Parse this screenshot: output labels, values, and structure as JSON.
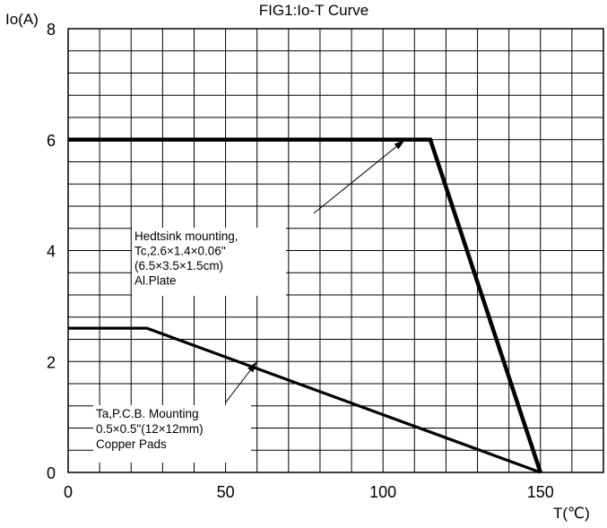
{
  "chart_data": {
    "type": "line",
    "title": "FIG1:Io-T Curve",
    "xlabel": "T(℃)",
    "ylabel": "Io(A)",
    "xlim": [
      0,
      170
    ],
    "ylim": [
      0,
      8
    ],
    "xticks": [
      0,
      50,
      100,
      150
    ],
    "yticks": [
      0,
      2,
      4,
      6,
      8
    ],
    "grid": true,
    "series": [
      {
        "name": "Hedtsink mounting",
        "x": [
          0,
          115,
          150
        ],
        "y": [
          6,
          6,
          0
        ]
      },
      {
        "name": "Ta,P.C.B. Mounting",
        "x": [
          0,
          25,
          150
        ],
        "y": [
          2.6,
          2.6,
          0
        ]
      }
    ],
    "annotations": [
      {
        "lines": [
          "Hedtsink mounting,",
          "Tc,2.6×1.4×0.06\"",
          "(6.5×3.5×1.5cm)",
          "Al.Plate"
        ],
        "arrow_from": [
          78,
          4.67
        ],
        "arrow_to": [
          107,
          6.0
        ]
      },
      {
        "lines": [
          "Ta,P.C.B.  Mounting",
          "0.5×0.5\"(12×12mm)",
          "Copper Pads"
        ],
        "arrow_from": [
          50,
          1.26
        ],
        "arrow_to": [
          60,
          2.0
        ]
      }
    ]
  }
}
